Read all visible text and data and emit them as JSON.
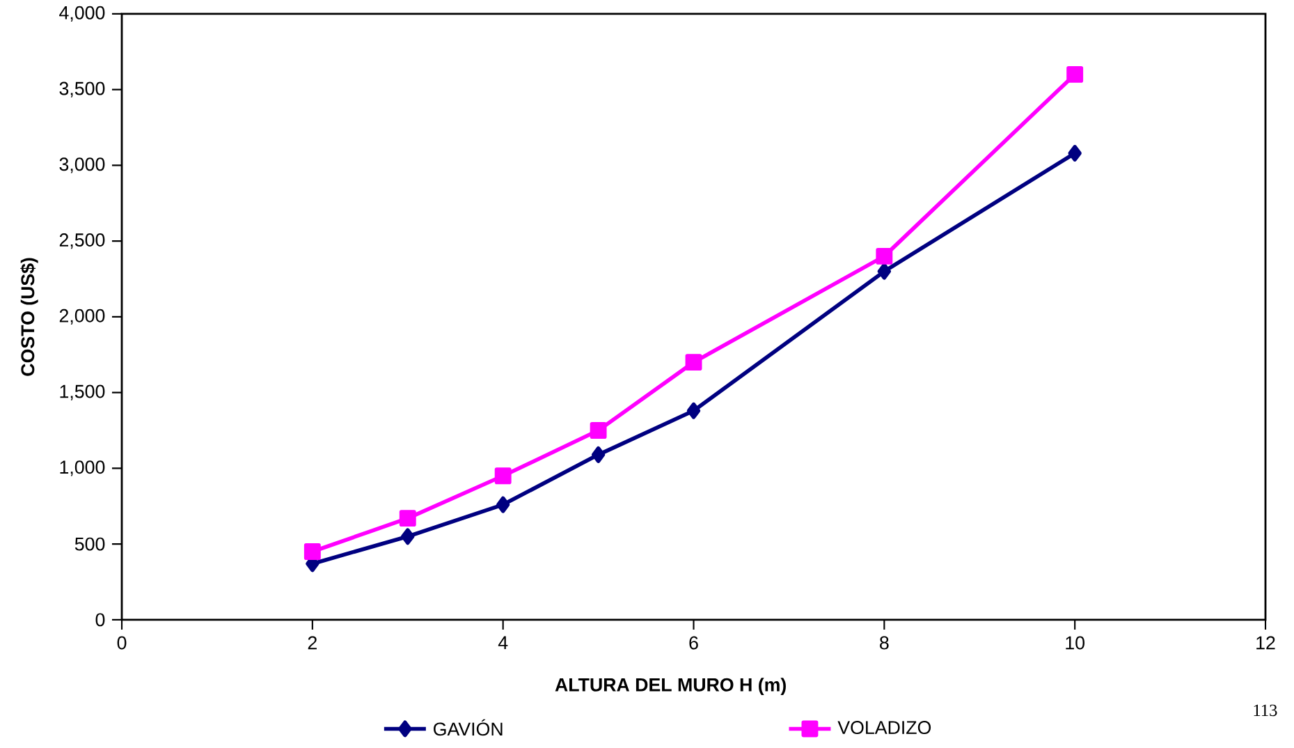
{
  "chart_data": {
    "type": "line",
    "xlabel": "ALTURA DEL MURO  H  (m)",
    "ylabel": "COSTO  (US$)",
    "x": [
      2,
      3,
      4,
      5,
      6,
      8,
      10
    ],
    "series": [
      {
        "name": "GAVIÓN",
        "color": "#000080",
        "marker": "diamond",
        "values": [
          370,
          550,
          760,
          1090,
          1380,
          2300,
          3080
        ]
      },
      {
        "name": "VOLADIZO",
        "color": "#ff00ff",
        "marker": "square",
        "values": [
          450,
          670,
          950,
          1250,
          1700,
          2400,
          3600
        ]
      }
    ],
    "xlim": [
      0,
      12
    ],
    "xticks": [
      0,
      2,
      4,
      6,
      8,
      10,
      12
    ],
    "ylim": [
      0,
      4000
    ],
    "yticks": [
      0,
      500,
      {
        "value": 1000,
        "label": "1,000"
      },
      {
        "value": 1500,
        "label": "1,500"
      },
      {
        "value": 2000,
        "label": "2,000"
      },
      {
        "value": 2500,
        "label": "2,500"
      },
      {
        "value": 3000,
        "label": "3,000"
      },
      {
        "value": 3500,
        "label": "3,500"
      },
      {
        "value": 4000,
        "label": "4,000"
      }
    ],
    "grid": false,
    "legend": "bottom",
    "annotations": [
      "113"
    ]
  }
}
